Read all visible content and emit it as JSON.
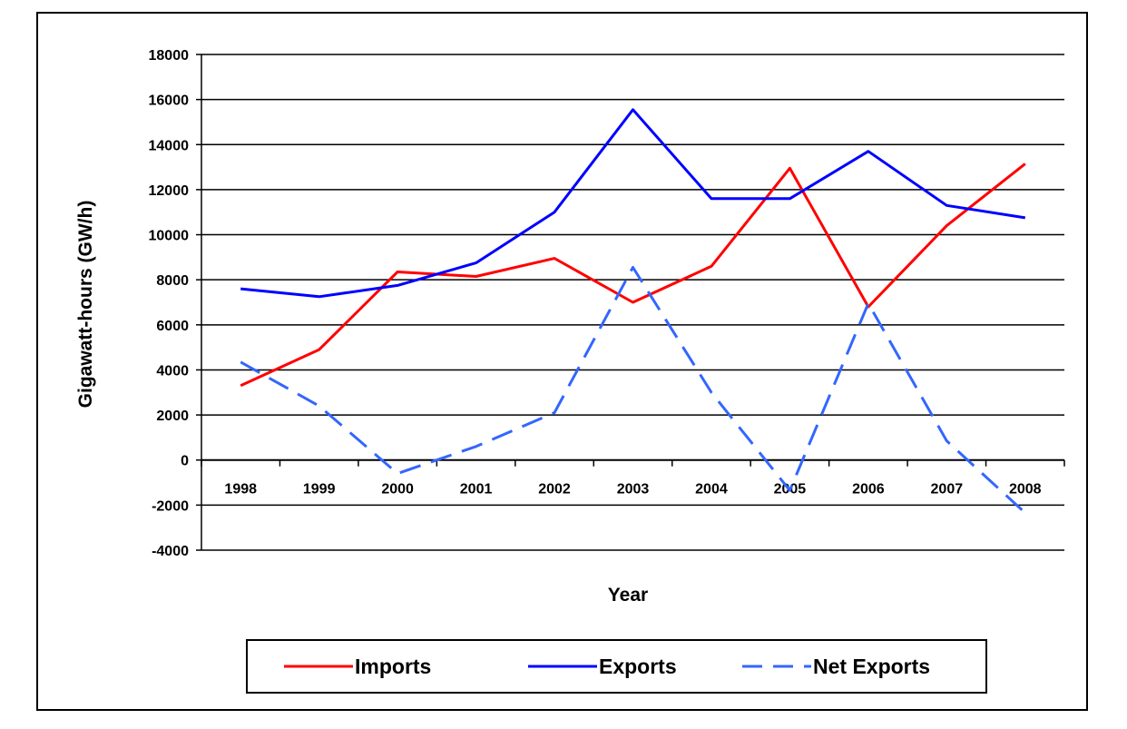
{
  "chart_data": {
    "type": "line",
    "title": "",
    "xlabel": "Year",
    "ylabel": "Gigawatt-hours (GW/h)",
    "categories": [
      "1998",
      "1999",
      "2000",
      "2001",
      "2002",
      "2003",
      "2004",
      "2005",
      "2006",
      "2007",
      "2008"
    ],
    "ylim": [
      -4000,
      18000
    ],
    "yticks": [
      18000,
      16000,
      14000,
      12000,
      10000,
      8000,
      6000,
      4000,
      2000,
      0,
      -2000,
      -4000
    ],
    "grid": true,
    "legend_position": "bottom",
    "series": [
      {
        "name": "Imports",
        "color": "#ff0000",
        "dash": "solid",
        "values": [
          3300,
          4900,
          8350,
          8150,
          8950,
          7000,
          8600,
          12950,
          6800,
          10400,
          13150
        ]
      },
      {
        "name": "Exports",
        "color": "#0000ff",
        "dash": "solid",
        "values": [
          7600,
          7250,
          7750,
          8750,
          11000,
          15550,
          11600,
          11600,
          13700,
          11300,
          10750
        ]
      },
      {
        "name": "Net Exports",
        "color": "#3366ff",
        "dash": "dashed",
        "values": [
          4350,
          2400,
          -600,
          600,
          2100,
          8550,
          3000,
          -1350,
          6950,
          850,
          -2350
        ]
      }
    ]
  }
}
